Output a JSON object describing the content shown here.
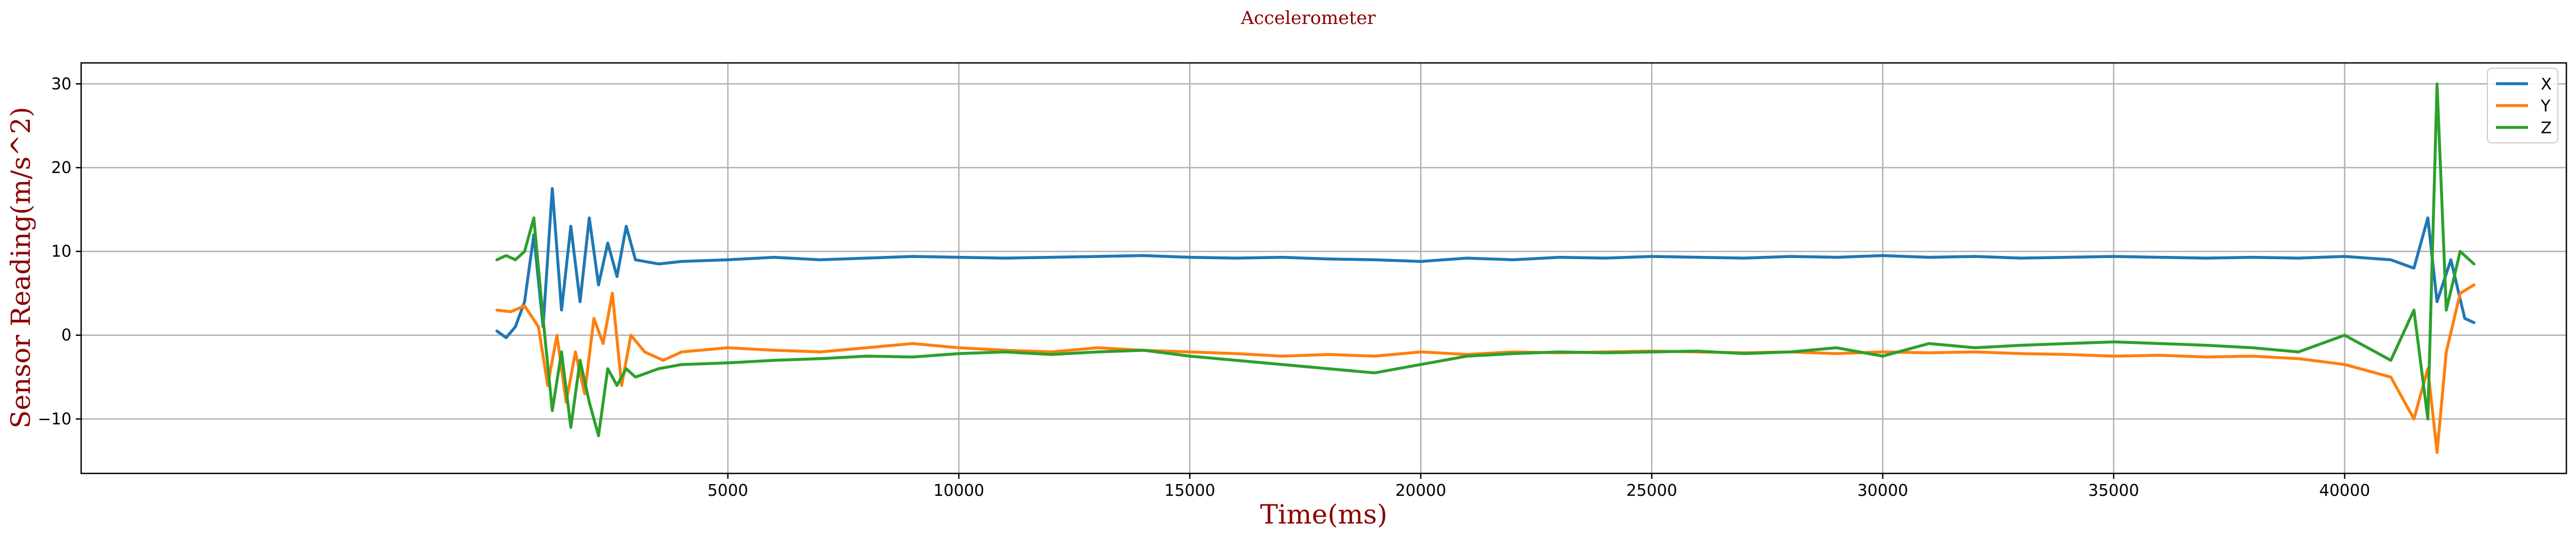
{
  "chart_data": {
    "type": "line",
    "title": "Accelerometer",
    "xlabel": "Time(ms)",
    "ylabel": "Sensor Reading(m/s^2)",
    "xlim": [
      -9000,
      44800
    ],
    "ylim": [
      -16.5,
      32.5
    ],
    "xticks": [
      5000,
      10000,
      15000,
      20000,
      25000,
      30000,
      35000,
      40000
    ],
    "yticks": [
      -10,
      0,
      10,
      20,
      30
    ],
    "grid": true,
    "legend": "top-right",
    "colors": {
      "X": "#1f77b4",
      "Y": "#ff7f0e",
      "Z": "#2ca02c"
    },
    "series": [
      {
        "name": "X",
        "x": [
          0,
          200,
          400,
          600,
          800,
          1000,
          1200,
          1400,
          1600,
          1800,
          2000,
          2200,
          2400,
          2600,
          2800,
          3000,
          3500,
          4000,
          5000,
          6000,
          7000,
          8000,
          9000,
          10000,
          11000,
          12000,
          13000,
          14000,
          15000,
          16000,
          17000,
          18000,
          19000,
          20000,
          21000,
          22000,
          23000,
          24000,
          25000,
          26000,
          27000,
          28000,
          29000,
          30000,
          31000,
          32000,
          33000,
          34000,
          35000,
          36000,
          37000,
          38000,
          39000,
          40000,
          41000,
          41500,
          41800,
          42000,
          42300,
          42600,
          42800
        ],
        "y": [
          0.5,
          -0.3,
          1.0,
          4.0,
          12.0,
          1.0,
          17.5,
          3.0,
          13.0,
          4.0,
          14.0,
          6.0,
          11.0,
          7.0,
          13.0,
          9.0,
          8.5,
          8.8,
          9.0,
          9.3,
          9.0,
          9.2,
          9.4,
          9.3,
          9.2,
          9.3,
          9.4,
          9.5,
          9.3,
          9.2,
          9.3,
          9.1,
          9.0,
          8.8,
          9.2,
          9.0,
          9.3,
          9.2,
          9.4,
          9.3,
          9.2,
          9.4,
          9.3,
          9.5,
          9.3,
          9.4,
          9.2,
          9.3,
          9.4,
          9.3,
          9.2,
          9.3,
          9.2,
          9.4,
          9.0,
          8.0,
          14.0,
          4.0,
          9.0,
          2.0,
          1.5
        ]
      },
      {
        "name": "Y",
        "x": [
          0,
          300,
          600,
          900,
          1100,
          1300,
          1500,
          1700,
          1900,
          2100,
          2300,
          2500,
          2700,
          2900,
          3200,
          3600,
          4000,
          5000,
          6000,
          7000,
          8000,
          9000,
          10000,
          11000,
          12000,
          13000,
          14000,
          15000,
          16000,
          17000,
          18000,
          19000,
          20000,
          21000,
          22000,
          23000,
          24000,
          25000,
          26000,
          27000,
          28000,
          29000,
          30000,
          31000,
          32000,
          33000,
          34000,
          35000,
          36000,
          37000,
          38000,
          39000,
          40000,
          41000,
          41500,
          41800,
          42000,
          42200,
          42500,
          42800
        ],
        "y": [
          3.0,
          2.8,
          3.5,
          1.0,
          -6.0,
          0.0,
          -8.0,
          -2.0,
          -7.0,
          2.0,
          -1.0,
          5.0,
          -6.0,
          0.0,
          -2.0,
          -3.0,
          -2.0,
          -1.5,
          -1.8,
          -2.0,
          -1.5,
          -1.0,
          -1.5,
          -1.8,
          -2.0,
          -1.5,
          -1.8,
          -2.0,
          -2.2,
          -2.5,
          -2.3,
          -2.5,
          -2.0,
          -2.3,
          -2.0,
          -2.1,
          -2.0,
          -1.9,
          -2.0,
          -2.1,
          -2.0,
          -2.2,
          -2.0,
          -2.1,
          -2.0,
          -2.2,
          -2.3,
          -2.5,
          -2.4,
          -2.6,
          -2.5,
          -2.8,
          -3.5,
          -5.0,
          -10.0,
          -4.0,
          -14.0,
          -2.0,
          5.0,
          6.0
        ]
      },
      {
        "name": "Z",
        "x": [
          0,
          200,
          400,
          600,
          800,
          1000,
          1200,
          1400,
          1600,
          1800,
          2000,
          2200,
          2400,
          2600,
          2800,
          3000,
          3500,
          4000,
          5000,
          6000,
          7000,
          8000,
          9000,
          10000,
          11000,
          12000,
          13000,
          14000,
          15000,
          16000,
          17000,
          18000,
          19000,
          20000,
          21000,
          22000,
          23000,
          24000,
          25000,
          26000,
          27000,
          28000,
          29000,
          30000,
          31000,
          32000,
          33000,
          34000,
          35000,
          36000,
          37000,
          38000,
          39000,
          40000,
          41000,
          41500,
          41800,
          42000,
          42200,
          42500,
          42800
        ],
        "y": [
          9.0,
          9.5,
          9.0,
          10.0,
          14.0,
          2.0,
          -9.0,
          -2.0,
          -11.0,
          -3.0,
          -8.0,
          -12.0,
          -4.0,
          -6.0,
          -4.0,
          -5.0,
          -4.0,
          -3.5,
          -3.3,
          -3.0,
          -2.8,
          -2.5,
          -2.6,
          -2.2,
          -2.0,
          -2.3,
          -2.0,
          -1.8,
          -2.5,
          -3.0,
          -3.5,
          -4.0,
          -4.5,
          -3.5,
          -2.5,
          -2.2,
          -2.0,
          -2.1,
          -2.0,
          -1.9,
          -2.2,
          -2.0,
          -1.5,
          -2.5,
          -1.0,
          -1.5,
          -1.2,
          -1.0,
          -0.8,
          -1.0,
          -1.2,
          -1.5,
          -2.0,
          0.0,
          -3.0,
          3.0,
          -10.0,
          30.0,
          3.0,
          10.0,
          8.5
        ]
      }
    ]
  }
}
